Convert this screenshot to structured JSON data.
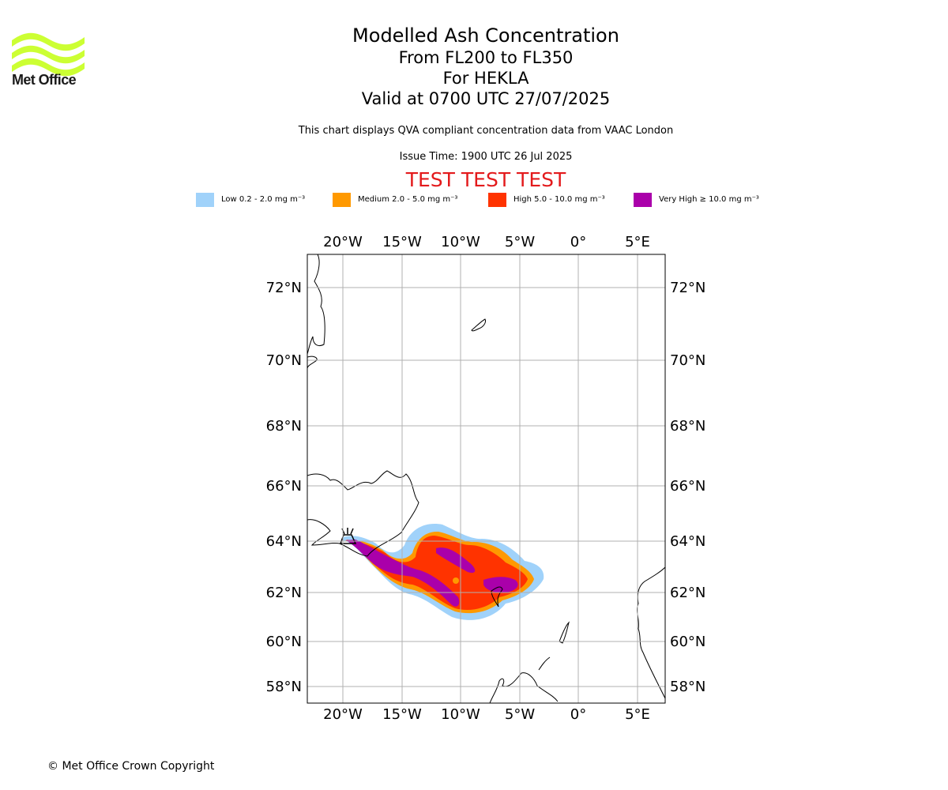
{
  "brand": {
    "logo_text": "Met Office",
    "logo_color": "#ccff33"
  },
  "header": {
    "title": "Modelled Ash Concentration",
    "level": "From FL200 to FL350",
    "volcano": "For HEKLA",
    "valid": "Valid at 0700 UTC 27/07/2025",
    "description": "This chart displays QVA compliant concentration data from VAAC London",
    "issue_time": "Issue Time: 1900 UTC 26 Jul 2025",
    "test_banner": "TEST TEST TEST"
  },
  "legend": [
    {
      "label": "Low 0.2 - 2.0 mg m⁻³",
      "color": "#a0d2fa"
    },
    {
      "label": "Medium 2.0 - 5.0 mg m⁻³",
      "color": "#ff9900"
    },
    {
      "label": "High 5.0 - 10.0 mg m⁻³",
      "color": "#ff3300"
    },
    {
      "label": "Very High ≥ 10.0 mg m⁻³",
      "color": "#aa00aa"
    }
  ],
  "map": {
    "lon_ticks": [
      "20°W",
      "15°W",
      "10°W",
      "5°W",
      "0°",
      "5°E"
    ],
    "lat_ticks": [
      "72°N",
      "70°N",
      "68°N",
      "66°N",
      "64°N",
      "62°N",
      "60°N",
      "58°N"
    ],
    "volcano_marker": "HEKLA",
    "grid_color": "#b0b0b0"
  },
  "footer": {
    "copyright": "© Met Office Crown Copyright"
  }
}
